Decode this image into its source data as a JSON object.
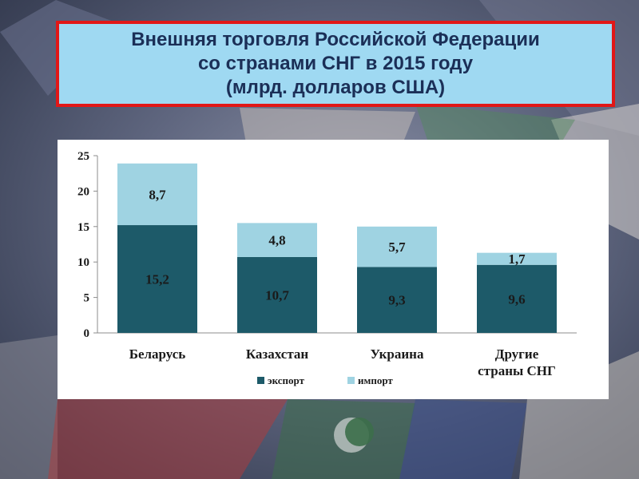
{
  "title": {
    "line1": "Внешняя торговля Российской Федерации",
    "line2": "со странами СНГ в  2015 году",
    "line3": "(млрд. долларов США)"
  },
  "colors": {
    "export": "#1d5a69",
    "import": "#9fd3e2",
    "title_bg": "#9fd9f2",
    "title_border": "#e11717",
    "title_text": "#1b2f57"
  },
  "chart_data": {
    "type": "bar",
    "stacked": true,
    "categories": [
      "Беларусь",
      "Казахстан",
      "Украина",
      "Другие страны СНГ"
    ],
    "category_lines": [
      [
        "Беларусь"
      ],
      [
        "Казахстан"
      ],
      [
        "Украина"
      ],
      [
        "Другие",
        "страны СНГ"
      ]
    ],
    "series": [
      {
        "name": "экспорт",
        "values": [
          15.2,
          10.7,
          9.3,
          9.6
        ],
        "labels": [
          "15,2",
          "10,7",
          "9,3",
          "9,6"
        ],
        "color": "#1d5a69"
      },
      {
        "name": "импорт",
        "values": [
          8.7,
          4.8,
          5.7,
          1.7
        ],
        "labels": [
          "8,7",
          "4,8",
          "5,7",
          "1,7"
        ],
        "color": "#9fd3e2"
      }
    ],
    "ylim": [
      0,
      25
    ],
    "yticks": [
      0,
      5,
      10,
      15,
      20,
      25
    ],
    "grid": false,
    "legend_position": "bottom"
  }
}
